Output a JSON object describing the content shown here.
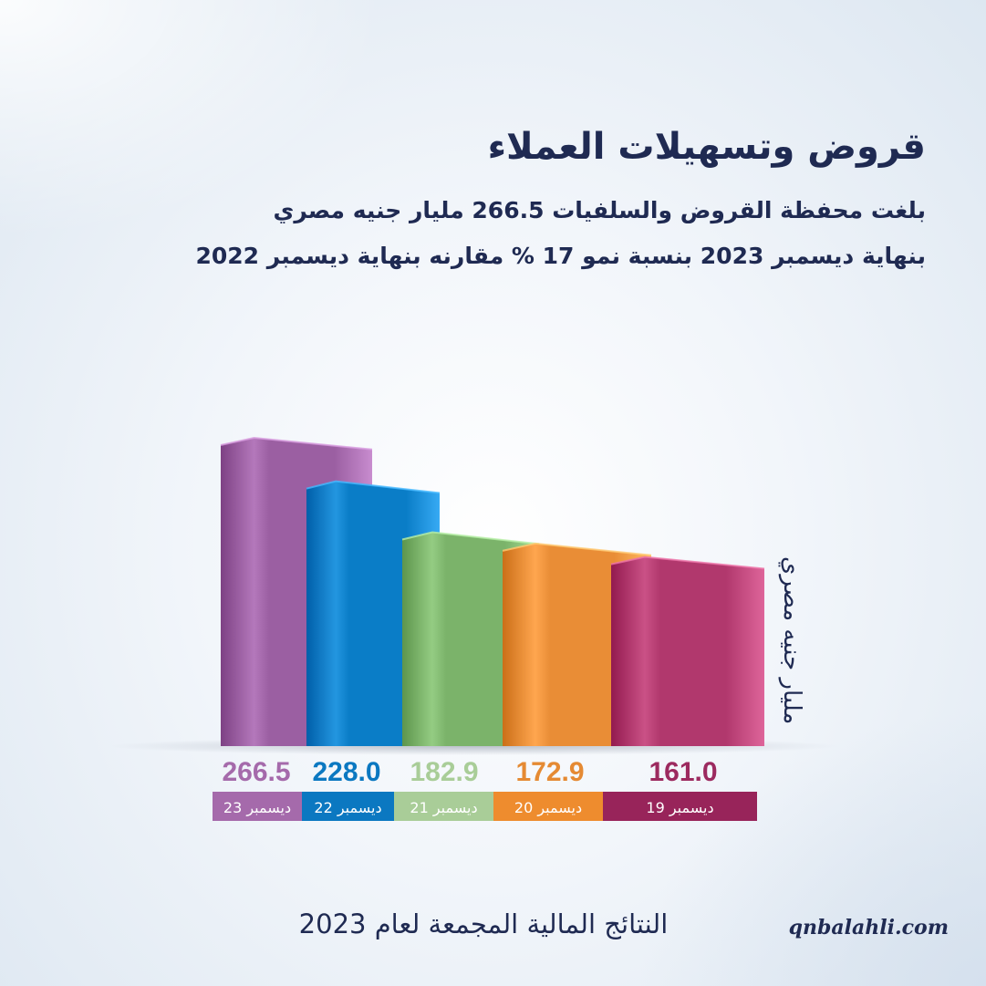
{
  "header": {
    "title": "قروض وتسهيلات العملاء",
    "subtitle_line1": "بلغت محفظة القروض والسلفيات 266.5 مليار جنيه مصري",
    "subtitle_line2": "بنهاية ديسمبر 2023 بنسبة نمو 17 % مقارنه بنهاية ديسمبر 2022"
  },
  "chart_data": {
    "type": "bar",
    "categories": [
      "ديسمبر 23",
      "ديسمبر 22",
      "ديسمبر 21",
      "ديسمبر 20",
      "ديسمبر 19"
    ],
    "values": [
      266.5,
      228.0,
      182.9,
      172.9,
      161.0
    ],
    "value_labels": [
      "266.5",
      "228.0",
      "182.9",
      "172.9",
      "161.0"
    ],
    "unit_label": "مليار جنيه مصري",
    "colors": [
      "#9b5fa2",
      "#0a7dc7",
      "#7bb36a",
      "#e98d36",
      "#b1386d"
    ],
    "label_colors": [
      "#a56aab",
      "#0b78c1",
      "#a9cd98",
      "#e58a33",
      "#9c2a5f"
    ],
    "category_colors": [
      "#a56aab",
      "#0b78c1",
      "#a9cd98",
      "#ee8c2e",
      "#98245a"
    ],
    "ylim": [
      0,
      266.5
    ]
  },
  "footer": {
    "results_text": "النتائج المالية المجمعة لعام 2023",
    "website": "qnbalahli.com"
  }
}
